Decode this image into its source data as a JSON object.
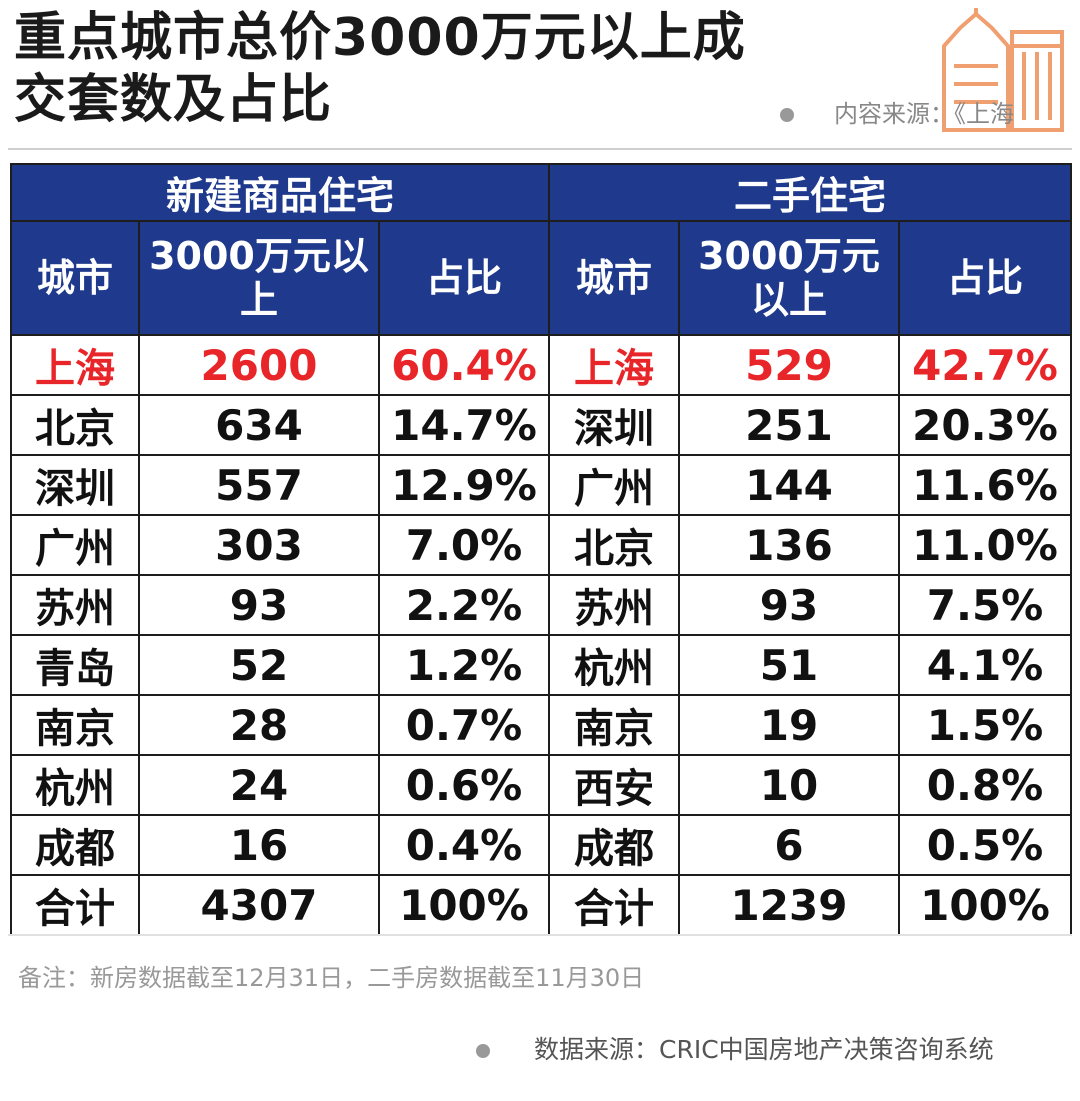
{
  "title": {
    "line1": "重点城市总价3000万元以上成",
    "line2": "交套数及占比"
  },
  "source_top": "内容来源：《上海",
  "table": {
    "groups": [
      "新建商品住宅",
      "二手住宅"
    ],
    "columns": [
      "城市",
      "3000万元以上",
      "占比",
      "城市",
      "3000万元以上",
      "占比"
    ],
    "new_rows": [
      {
        "city": "上海",
        "count": "2600",
        "share": "60.4%"
      },
      {
        "city": "北京",
        "count": "634",
        "share": "14.7%"
      },
      {
        "city": "深圳",
        "count": "557",
        "share": "12.9%"
      },
      {
        "city": "广州",
        "count": "303",
        "share": "7.0%"
      },
      {
        "city": "苏州",
        "count": "93",
        "share": "2.2%"
      },
      {
        "city": "青岛",
        "count": "52",
        "share": "1.2%"
      },
      {
        "city": "南京",
        "count": "28",
        "share": "0.7%"
      },
      {
        "city": "杭州",
        "count": "24",
        "share": "0.6%"
      },
      {
        "city": "成都",
        "count": "16",
        "share": "0.4%"
      },
      {
        "city": "合计",
        "count": "4307",
        "share": "100%"
      }
    ],
    "resale_rows": [
      {
        "city": "上海",
        "count": "529",
        "share": "42.7%"
      },
      {
        "city": "深圳",
        "count": "251",
        "share": "20.3%"
      },
      {
        "city": "广州",
        "count": "144",
        "share": "11.6%"
      },
      {
        "city": "北京",
        "count": "136",
        "share": "11.0%"
      },
      {
        "city": "苏州",
        "count": "93",
        "share": "7.5%"
      },
      {
        "city": "杭州",
        "count": "51",
        "share": "4.1%"
      },
      {
        "city": "南京",
        "count": "19",
        "share": "1.5%"
      },
      {
        "city": "西安",
        "count": "10",
        "share": "0.8%"
      },
      {
        "city": "成都",
        "count": "6",
        "share": "0.5%"
      },
      {
        "city": "合计",
        "count": "1239",
        "share": "100%"
      }
    ]
  },
  "note": "备注：新房数据截至12月31日，二手房数据截至11月30日",
  "source_bottom": "数据来源：CRIC中国房地产决策咨询系统",
  "colors": {
    "header_bg": "#1f3a8c",
    "highlight": "#e8262a",
    "logo": "#f0a070"
  },
  "chart_data": {
    "type": "table",
    "title": "重点城市总价3000万元以上成交套数及占比",
    "column_groups": [
      "新建商品住宅",
      "二手住宅"
    ],
    "columns": [
      "城市",
      "3000万元以上",
      "占比"
    ],
    "series": [
      {
        "name": "新建商品住宅",
        "categories": [
          "上海",
          "北京",
          "深圳",
          "广州",
          "苏州",
          "青岛",
          "南京",
          "杭州",
          "成都",
          "合计"
        ],
        "values": [
          2600,
          634,
          557,
          303,
          93,
          52,
          28,
          24,
          16,
          4307
        ],
        "shares": [
          "60.4%",
          "14.7%",
          "12.9%",
          "7.0%",
          "2.2%",
          "1.2%",
          "0.7%",
          "0.6%",
          "0.4%",
          "100%"
        ]
      },
      {
        "name": "二手住宅",
        "categories": [
          "上海",
          "深圳",
          "广州",
          "北京",
          "苏州",
          "杭州",
          "南京",
          "西安",
          "成都",
          "合计"
        ],
        "values": [
          529,
          251,
          144,
          136,
          93,
          51,
          19,
          10,
          6,
          1239
        ],
        "shares": [
          "42.7%",
          "20.3%",
          "11.6%",
          "11.0%",
          "7.5%",
          "4.1%",
          "1.5%",
          "0.8%",
          "0.5%",
          "100%"
        ]
      }
    ]
  }
}
